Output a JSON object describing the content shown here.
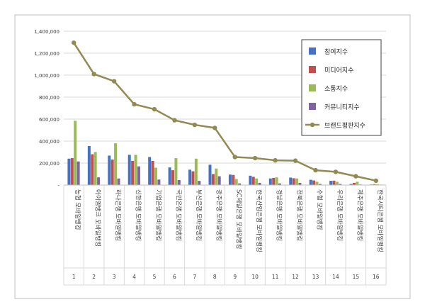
{
  "chart_data": {
    "type": "bar",
    "categories": [
      "1",
      "2",
      "3",
      "4",
      "5",
      "6",
      "7",
      "8",
      "9",
      "10",
      "11",
      "12",
      "13",
      "14",
      "15",
      "16"
    ],
    "category_names": [
      "농협 모바일뱅킹",
      "아이엠뱅크 모바일뱅킹",
      "하나은행 모바일뱅킹",
      "신한은행 모바일뱅킹",
      "기업은행 모바일뱅킹",
      "국민은행 모바일뱅킹",
      "부산은행 모바일뱅킹",
      "광주은행 모바일뱅킹",
      "SC제일은행 모바일뱅킹",
      "한국산업은행 모바일뱅킹",
      "경남은행 모바일뱅킹",
      "전북은행 모바일뱅킹",
      "수협 모바일뱅킹",
      "우리은행 모바일뱅킹",
      "제주은행 모바일뱅킹",
      "한국시티은행 모바일뱅킹"
    ],
    "series": [
      {
        "name": "참여지수",
        "type": "bar",
        "color": "#4472c4",
        "values": [
          240000,
          355000,
          268000,
          275000,
          255000,
          160000,
          140000,
          185000,
          95000,
          85000,
          60000,
          68000,
          48000,
          38000,
          10000,
          5000
        ]
      },
      {
        "name": "미디어지수",
        "type": "bar",
        "color": "#c0504d",
        "values": [
          245000,
          280000,
          232000,
          220000,
          220000,
          135000,
          125000,
          100000,
          92000,
          75000,
          65000,
          62000,
          42000,
          40000,
          20000,
          8000
        ]
      },
      {
        "name": "소통지수",
        "type": "bar",
        "color": "#9bbb59",
        "values": [
          585000,
          300000,
          380000,
          275000,
          158000,
          245000,
          240000,
          150000,
          55000,
          60000,
          70000,
          60000,
          30000,
          30000,
          30000,
          8000
        ]
      },
      {
        "name": "커뮤니티지수",
        "type": "bar",
        "color": "#8064a2",
        "values": [
          215000,
          70000,
          60000,
          170000,
          50000,
          45000,
          38000,
          80000,
          15000,
          20000,
          15000,
          20000,
          10000,
          10000,
          5000,
          4000
        ]
      },
      {
        "name": "브랜드평판지수",
        "type": "line",
        "color": "#938953",
        "values": [
          1295000,
          1010000,
          945000,
          735000,
          690000,
          590000,
          548000,
          520000,
          255000,
          245000,
          225000,
          222000,
          135000,
          120000,
          80000,
          40000
        ]
      }
    ],
    "ylim": [
      0,
      1400000
    ],
    "yticks": [
      "-",
      "200,000",
      "400,000",
      "600,000",
      "800,000",
      "1,000,000",
      "1,200,000",
      "1,400,000"
    ],
    "grid": true,
    "legend_position": "right"
  }
}
